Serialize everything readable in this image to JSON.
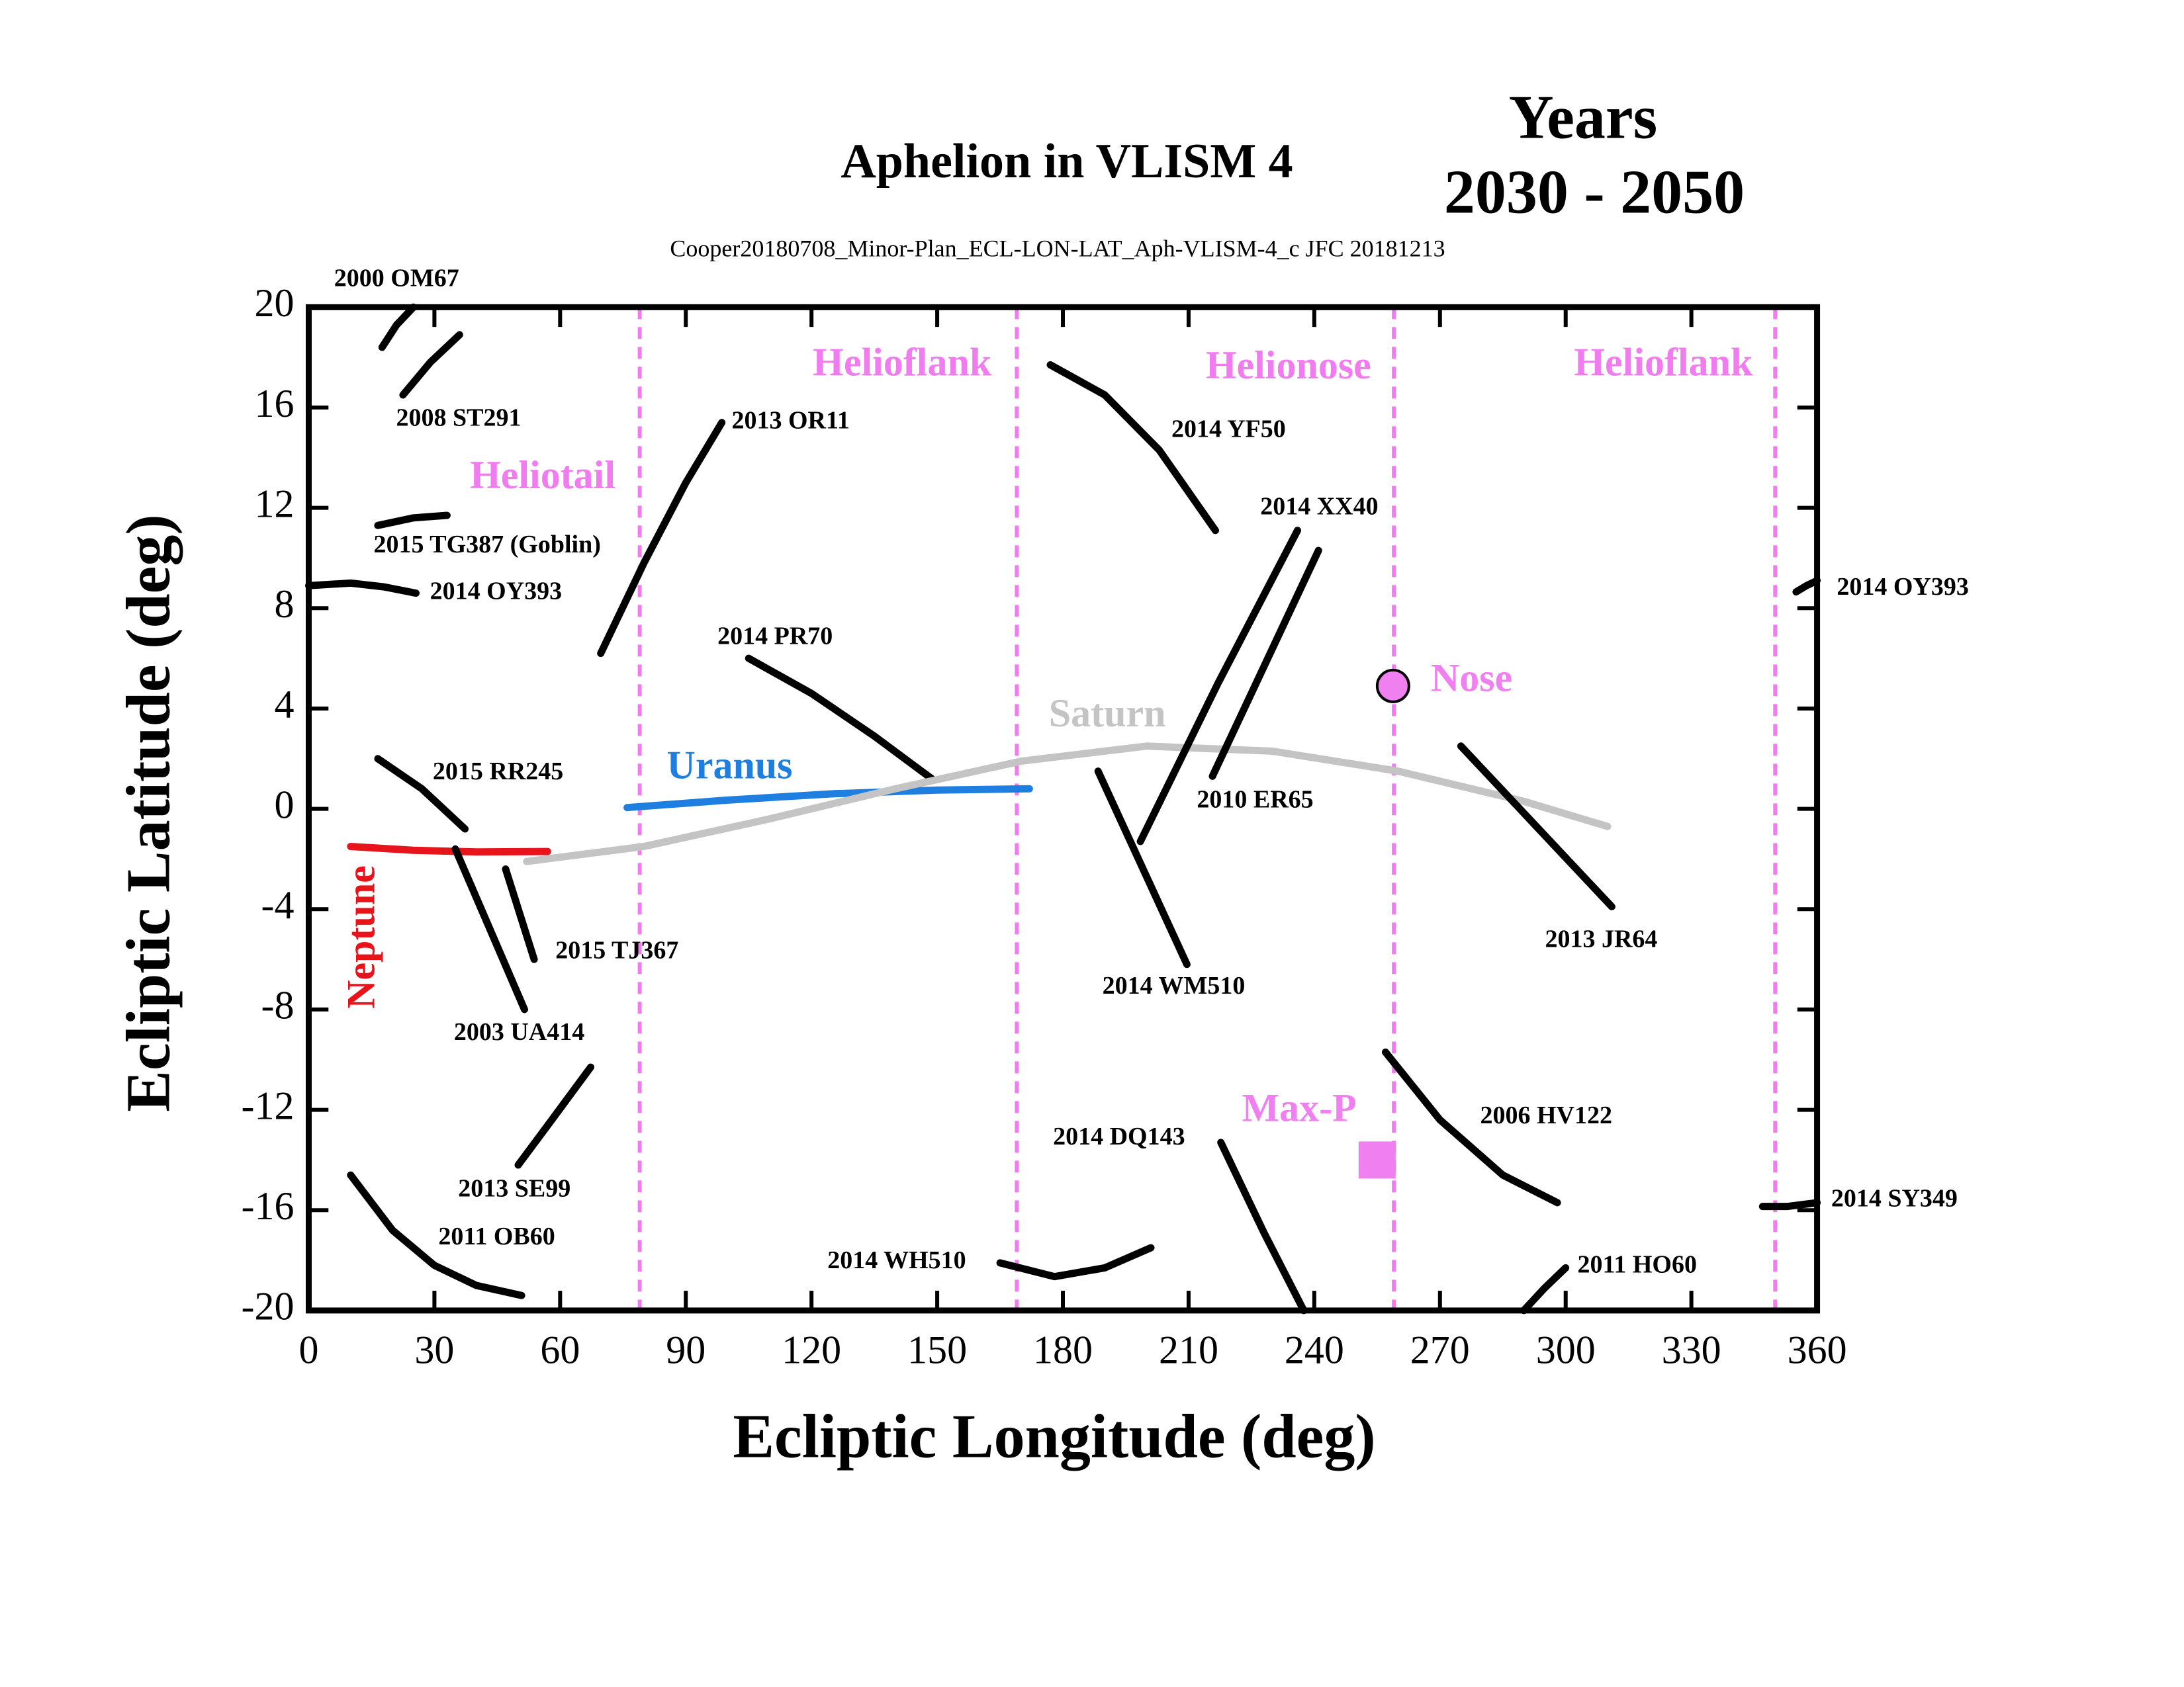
{
  "chart_data": {
    "type": "line",
    "title": "Aphelion in VLISM 4",
    "title_right": [
      "Years",
      "2030 - 2050"
    ],
    "subtitle": "Cooper20180708_Minor-Plan_ECL-LON-LAT_Aph-VLISM-4_c JFC 20181213",
    "xlabel": "Ecliptic Longitude (deg)",
    "ylabel": "Ecliptic Latitude (deg)",
    "xlim": [
      0,
      360
    ],
    "ylim": [
      -20,
      20
    ],
    "xticks": [
      0,
      30,
      60,
      90,
      120,
      150,
      180,
      210,
      240,
      270,
      300,
      330,
      360
    ],
    "yticks": [
      -20,
      -16,
      -12,
      -8,
      -4,
      0,
      4,
      8,
      12,
      16,
      20
    ],
    "vlines": [
      79,
      169,
      259,
      350
    ],
    "vline_color": "#f07cf0",
    "annotations": [
      "Heliotail",
      "Helioflank",
      "Helionose",
      "Helioflank"
    ],
    "series": [
      {
        "name": "2000 OM67",
        "color": "#000000",
        "x": [
          17.5,
          21,
          25
        ],
        "y": [
          18.4,
          19.3,
          20
        ]
      },
      {
        "name": "2008 ST291",
        "color": "#000000",
        "x": [
          22.5,
          29,
          36
        ],
        "y": [
          16.5,
          17.8,
          18.9
        ]
      },
      {
        "name": "2015 TG387 (Goblin)",
        "color": "#000000",
        "x": [
          16.5,
          25,
          33
        ],
        "y": [
          11.3,
          11.6,
          11.7
        ]
      },
      {
        "name": "2014 OY393",
        "color": "#000000",
        "x": [
          0,
          10,
          18,
          25.6
        ],
        "y": [
          8.9,
          9.0,
          8.85,
          8.6
        ]
      },
      {
        "name": "2014 OY393",
        "color": "#000000",
        "x": [
          355,
          357.5,
          360
        ],
        "y": [
          8.65,
          8.9,
          9.1
        ]
      },
      {
        "name": "2013 OR11",
        "color": "#000000",
        "x": [
          69.7,
          80,
          90,
          98.6
        ],
        "y": [
          6.2,
          9.8,
          13,
          15.4
        ]
      },
      {
        "name": "2014 PR70",
        "color": "#000000",
        "x": [
          105,
          120,
          135,
          148.7
        ],
        "y": [
          6.0,
          4.6,
          2.9,
          1.2
        ]
      },
      {
        "name": "2015 RR245",
        "color": "#000000",
        "x": [
          16.5,
          27,
          37.3
        ],
        "y": [
          2.0,
          0.8,
          -0.8
        ]
      },
      {
        "name": "Neptune",
        "color": "#e8141b",
        "x": [
          10,
          25,
          40,
          57
        ],
        "y": [
          -1.5,
          -1.65,
          -1.72,
          -1.7
        ]
      },
      {
        "name": "Uranus",
        "color": "#1f7fe0",
        "x": [
          76,
          100,
          125,
          150,
          172
        ],
        "y": [
          0.05,
          0.35,
          0.6,
          0.75,
          0.8
        ]
      },
      {
        "name": "Saturn",
        "color": "#c4c4c4",
        "x": [
          52,
          80,
          110,
          140,
          170,
          200,
          230,
          260,
          290,
          310
        ],
        "y": [
          -2.1,
          -1.5,
          -0.4,
          0.8,
          1.9,
          2.5,
          2.3,
          1.5,
          0.3,
          -0.7
        ]
      },
      {
        "name": "2003 UA414",
        "color": "#000000",
        "x": [
          35,
          43,
          51.5
        ],
        "y": [
          -1.6,
          -4.7,
          -8.0
        ]
      },
      {
        "name": "2015 TJ367",
        "color": "#000000",
        "x": [
          47,
          53.8
        ],
        "y": [
          -2.4,
          -6.0
        ]
      },
      {
        "name": "2013 SE99",
        "color": "#000000",
        "x": [
          50,
          58,
          67.3
        ],
        "y": [
          -14.2,
          -12.4,
          -10.3
        ]
      },
      {
        "name": "2011 OB60",
        "color": "#000000",
        "x": [
          10,
          20,
          30,
          40,
          50.8
        ],
        "y": [
          -14.6,
          -16.8,
          -18.2,
          -19.0,
          -19.4
        ]
      },
      {
        "name": "2014 YF50",
        "color": "#000000",
        "x": [
          177,
          190,
          203,
          216.4
        ],
        "y": [
          17.7,
          16.5,
          14.3,
          11.1
        ]
      },
      {
        "name": "2014 XX40",
        "color": "#000000",
        "x": [
          198.5,
          217,
          236
        ],
        "y": [
          -1.3,
          5.0,
          11.1
        ]
      },
      {
        "name": "2010 ER65",
        "color": "#000000",
        "x": [
          215.7,
          241
        ],
        "y": [
          1.3,
          10.3
        ]
      },
      {
        "name": "2014 WM510",
        "color": "#000000",
        "x": [
          188.4,
          209.6
        ],
        "y": [
          1.5,
          -6.2
        ]
      },
      {
        "name": "2013 JR64",
        "color": "#000000",
        "x": [
          275,
          293,
          311
        ],
        "y": [
          2.5,
          -0.7,
          -3.9
        ]
      },
      {
        "name": "2006 HV122",
        "color": "#000000",
        "x": [
          257,
          270,
          285,
          298
        ],
        "y": [
          -9.7,
          -12.4,
          -14.6,
          -15.7
        ]
      },
      {
        "name": "2014 DQ143",
        "color": "#000000",
        "x": [
          217.7,
          228,
          237.5
        ],
        "y": [
          -13.3,
          -16.9,
          -20
        ]
      },
      {
        "name": "2014 WH510",
        "color": "#000000",
        "x": [
          165,
          178,
          190,
          201
        ],
        "y": [
          -18.1,
          -18.65,
          -18.3,
          -17.5
        ]
      },
      {
        "name": "2011 HO60",
        "color": "#000000",
        "x": [
          290,
          295,
          300
        ],
        "y": [
          -20,
          -19.1,
          -18.3
        ]
      },
      {
        "name": "2014 SY349",
        "color": "#000000",
        "x": [
          347,
          353,
          360
        ],
        "y": [
          -15.85,
          -15.85,
          -15.7
        ]
      }
    ],
    "markers": [
      {
        "name": "Nose",
        "shape": "circle",
        "color": "#f080f0",
        "x": 258.8,
        "y": 4.9
      },
      {
        "name": "Max-P",
        "shape": "square",
        "color": "#f080f0",
        "x": 255,
        "y": -14.0
      }
    ]
  }
}
